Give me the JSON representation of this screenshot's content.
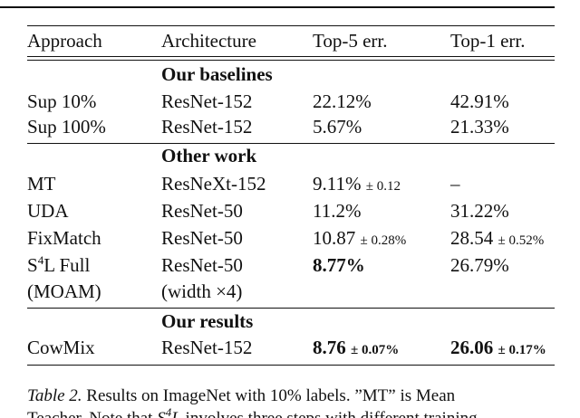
{
  "table": {
    "header": [
      "Approach",
      "Architecture",
      "Top-5 err.",
      "Top-1 err."
    ],
    "sections": [
      {
        "title": "Our baselines",
        "rows": [
          [
            "Sup 10%",
            "ResNet-152",
            "22.12%",
            "42.91%"
          ],
          [
            "Sup 100%",
            "ResNet-152",
            "5.67%",
            "21.33%"
          ]
        ]
      },
      {
        "title": "Other work",
        "rows": [
          [
            "MT",
            "ResNeXt-152",
            {
              "value": "9.11%",
              "pm": "± 0.12"
            },
            "–"
          ],
          [
            "UDA",
            "ResNet-50",
            "11.2%",
            "31.22%"
          ],
          [
            "FixMatch",
            "ResNet-50",
            {
              "value": "10.87",
              "pm": "± 0.28%"
            },
            {
              "value": "28.54",
              "pm": "± 0.52%"
            }
          ],
          [
            {
              "base": "S",
              "sup": "4",
              "rest": "L Full"
            },
            "ResNet-50",
            {
              "value": "8.77%",
              "bold": true
            },
            "26.79%"
          ],
          [
            "(MOAM)",
            "(width ×4)",
            "",
            ""
          ]
        ]
      },
      {
        "title": "Our results",
        "rows": [
          [
            "CowMix",
            "ResNet-152",
            {
              "value": "8.76",
              "pm": "± 0.07%",
              "bold": true
            },
            {
              "value": "26.06",
              "pm": "± 0.17%",
              "bold": true
            }
          ]
        ]
      }
    ]
  },
  "caption": {
    "label": "Table 2.",
    "line1": "Results on ImageNet with 10% labels. ”MT” is Mean",
    "line2": {
      "before": "Teacher. Note that ",
      "base": "S",
      "sup": "4",
      "rest": "L",
      "after": " involves three steps with different training"
    }
  }
}
